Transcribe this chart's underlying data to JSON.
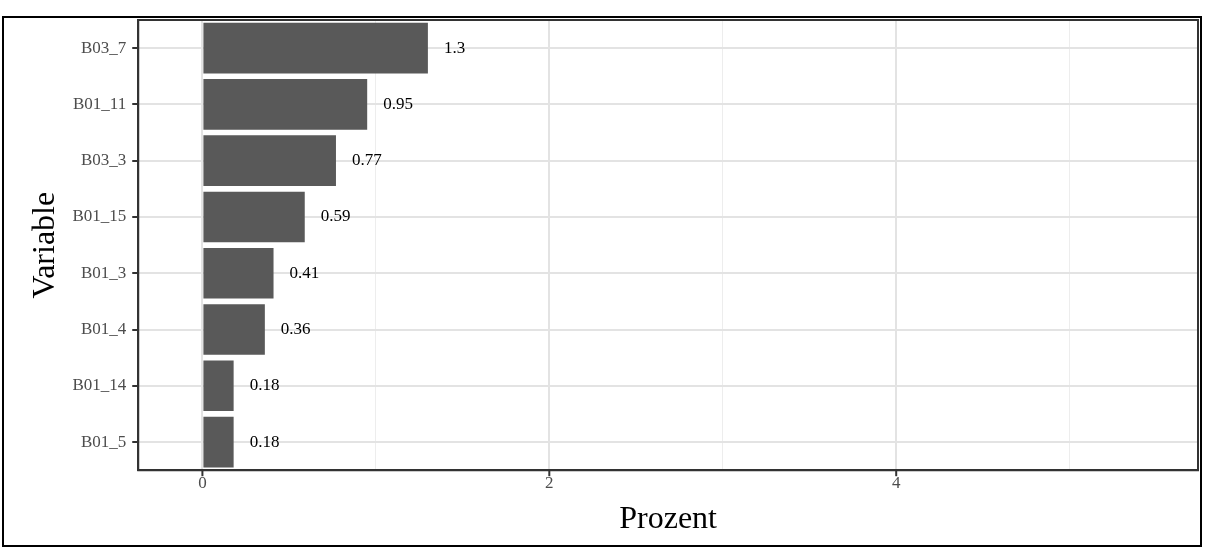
{
  "chart_data": {
    "type": "bar",
    "orientation": "horizontal",
    "xlabel": "Prozent",
    "ylabel": "Variable",
    "categories": [
      "B03_7",
      "B01_11",
      "B03_3",
      "B01_15",
      "B01_3",
      "B01_4",
      "B01_14",
      "B01_5"
    ],
    "values": [
      1.3,
      0.95,
      0.77,
      0.59,
      0.41,
      0.36,
      0.18,
      0.18
    ],
    "color": "#595959",
    "xlim": [
      -0.37,
      5.74
    ],
    "xticks": [
      0,
      {
        "value": 1,
        "label": null
      },
      2,
      {
        "value": 3,
        "label": null
      },
      4,
      {
        "value": 5,
        "label": null
      }
    ],
    "grid": true,
    "legend": false,
    "data_labels": true
  }
}
